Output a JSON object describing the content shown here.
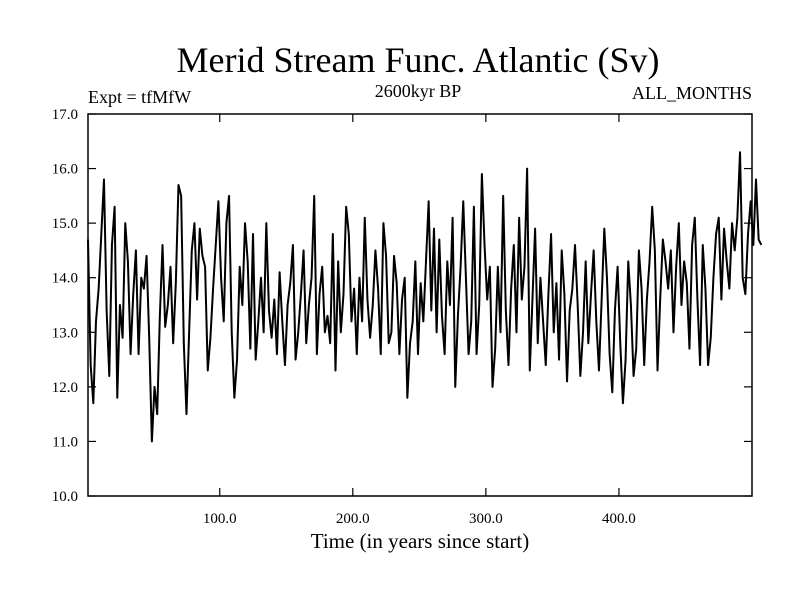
{
  "chart_data": {
    "type": "line",
    "title": "Merid Stream Func. Atlantic (Sv)",
    "experiment_label": "Expt = tfMfW",
    "period_label": "2600kyr BP",
    "months_label": "ALL_MONTHS",
    "xlabel": "Time (in years since start)",
    "ylabel": "",
    "xlim": [
      1,
      500
    ],
    "ylim": [
      10.0,
      17.0
    ],
    "x_ticks": [
      100,
      200,
      300,
      400
    ],
    "x_tick_labels": [
      "100.0",
      "200.0",
      "300.0",
      "400.0"
    ],
    "y_ticks": [
      10,
      11,
      12,
      13,
      14,
      15,
      16,
      17
    ],
    "y_tick_labels": [
      "10.0",
      "11.0",
      "12.0",
      "13.0",
      "14.0",
      "15.0",
      "16.0",
      "17.0"
    ],
    "series": [
      {
        "name": "Merid Stream Func. Atlantic",
        "x_start": 1,
        "x_step": 2,
        "values": [
          14.7,
          12.4,
          11.7,
          13.2,
          13.8,
          14.8,
          15.8,
          13.4,
          12.2,
          14.6,
          15.3,
          11.8,
          13.5,
          12.9,
          15.0,
          14.3,
          12.6,
          13.7,
          14.5,
          12.6,
          14.0,
          13.8,
          14.4,
          12.9,
          11.0,
          12.0,
          11.5,
          13.3,
          14.6,
          13.1,
          13.5,
          14.2,
          12.8,
          13.9,
          15.7,
          15.5,
          12.8,
          11.5,
          13.0,
          14.5,
          15.0,
          13.6,
          14.9,
          14.4,
          14.2,
          12.3,
          12.9,
          13.8,
          14.6,
          15.4,
          14.0,
          13.2,
          15.0,
          15.5,
          13.0,
          11.8,
          12.5,
          14.2,
          13.5,
          15.0,
          14.3,
          12.7,
          14.8,
          12.5,
          13.2,
          14.0,
          13.0,
          15.0,
          13.4,
          12.9,
          13.6,
          12.6,
          14.1,
          13.2,
          12.4,
          13.5,
          13.9,
          14.6,
          12.5,
          13.0,
          13.7,
          14.5,
          12.8,
          13.5,
          14.0,
          15.5,
          12.6,
          13.7,
          14.2,
          13.0,
          13.3,
          12.8,
          14.8,
          12.3,
          14.3,
          13.0,
          13.7,
          15.3,
          14.8,
          13.2,
          13.8,
          12.6,
          14.0,
          13.2,
          15.1,
          13.6,
          12.9,
          13.5,
          14.5,
          13.8,
          12.6,
          15.0,
          14.4,
          12.8,
          13.0,
          14.4,
          13.9,
          12.6,
          13.6,
          14.0,
          11.8,
          12.8,
          13.2,
          14.3,
          12.6,
          13.9,
          13.2,
          14.3,
          15.4,
          13.4,
          14.9,
          13.0,
          14.7,
          13.3,
          12.6,
          14.3,
          13.5,
          15.1,
          12.0,
          13.3,
          14.2,
          15.4,
          14.0,
          12.6,
          13.2,
          15.3,
          12.6,
          13.5,
          15.9,
          14.6,
          13.6,
          14.2,
          12.0,
          12.7,
          14.2,
          13.0,
          15.5,
          13.4,
          12.4,
          13.8,
          14.6,
          13.0,
          15.1,
          13.6,
          14.2,
          16.0,
          12.3,
          13.6,
          14.9,
          12.8,
          14.0,
          13.2,
          12.4,
          13.7,
          14.8,
          13.0,
          13.9,
          12.5,
          14.5,
          13.7,
          12.1,
          13.4,
          13.8,
          14.6,
          13.5,
          12.2,
          13.0,
          14.3,
          12.8,
          13.7,
          14.5,
          13.2,
          12.3,
          13.6,
          14.9,
          14.0,
          12.6,
          11.9,
          13.4,
          14.2,
          12.8,
          11.7,
          12.5,
          14.3,
          13.5,
          12.2,
          12.7,
          14.5,
          13.8,
          12.4,
          13.6,
          14.3,
          15.3,
          14.5,
          12.3,
          13.6,
          14.7,
          14.3,
          13.8,
          14.5,
          13.0,
          14.2,
          15.0,
          13.5,
          14.3,
          13.9,
          12.7,
          14.6,
          15.1,
          13.6,
          12.4,
          14.6,
          13.8,
          12.4,
          12.9,
          14.0,
          14.8,
          15.1,
          13.6,
          14.9,
          14.3,
          13.8,
          15.0,
          14.5,
          15.1,
          16.3,
          14.0,
          13.7,
          14.8,
          15.4,
          14.6,
          15.8,
          14.7,
          14.6
        ]
      }
    ],
    "grid": false,
    "legend": "none"
  }
}
